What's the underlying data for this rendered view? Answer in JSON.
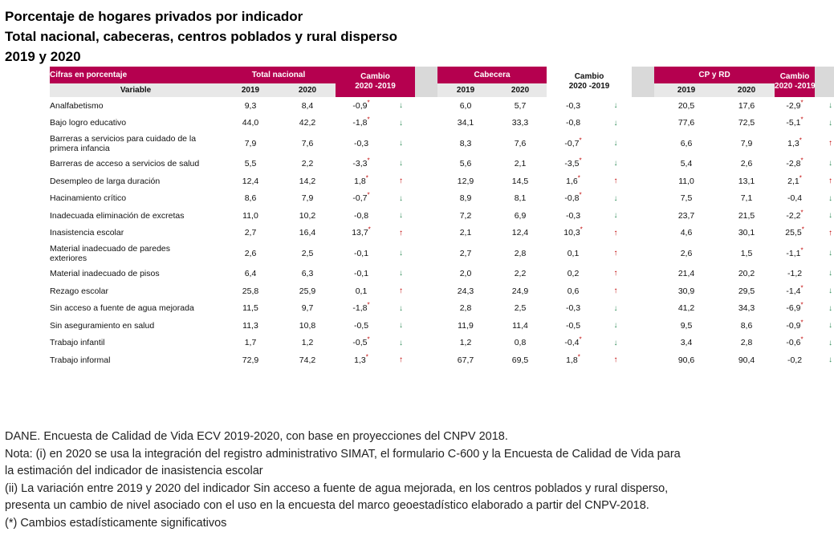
{
  "titles": {
    "line1": "Porcentaje de hogares privados por indicador",
    "line2": "Total nacional, cabeceras, centros poblados y rural disperso",
    "line3": "2019 y 2020"
  },
  "header": {
    "cifras": "Cifras en porcentaje",
    "variable": "Variable",
    "total_nacional": "Total nacional",
    "cabecera": "Cabecera",
    "cp_rd": "CP y RD",
    "cambio": "Cambio",
    "cambio_years": "2020 -2019",
    "y2019": "2019",
    "y2020": "2020"
  },
  "arrows": {
    "up": "↑",
    "down": "↓",
    "star": "*"
  },
  "colors": {
    "accent": "#b5004f",
    "up": "#c00000",
    "down": "#2e8b57",
    "gray": "#d9d9d9"
  },
  "rows": [
    {
      "name": "Analfabetismo",
      "tn19": "9,3",
      "tn20": "8,4",
      "tnc": "-0,9",
      "tns": true,
      "tna": "down",
      "c19": "6,0",
      "c20": "5,7",
      "cc": "-0,3",
      "cs": false,
      "ca": "down",
      "r19": "20,5",
      "r20": "17,6",
      "rc": "-2,9",
      "rs": true,
      "ra": "down"
    },
    {
      "name": "Bajo logro educativo",
      "tn19": "44,0",
      "tn20": "42,2",
      "tnc": "-1,8",
      "tns": true,
      "tna": "down",
      "c19": "34,1",
      "c20": "33,3",
      "cc": "-0,8",
      "cs": false,
      "ca": "down",
      "r19": "77,6",
      "r20": "72,5",
      "rc": "-5,1",
      "rs": true,
      "ra": "down"
    },
    {
      "name": "Barreras a servicios para cuidado de la",
      "name2": "primera infancia",
      "tn19": "7,9",
      "tn20": "7,6",
      "tnc": "-0,3",
      "tns": false,
      "tna": "down",
      "c19": "8,3",
      "c20": "7,6",
      "cc": "-0,7",
      "cs": true,
      "ca": "down",
      "r19": "6,6",
      "r20": "7,9",
      "rc": "1,3",
      "rs": true,
      "ra": "up"
    },
    {
      "name": "Barreras de acceso a servicios de salud",
      "tn19": "5,5",
      "tn20": "2,2",
      "tnc": "-3,3",
      "tns": true,
      "tna": "down",
      "c19": "5,6",
      "c20": "2,1",
      "cc": "-3,5",
      "cs": true,
      "ca": "down",
      "r19": "5,4",
      "r20": "2,6",
      "rc": "-2,8",
      "rs": true,
      "ra": "down"
    },
    {
      "name": "Desempleo de larga duración",
      "tn19": "12,4",
      "tn20": "14,2",
      "tnc": "1,8",
      "tns": true,
      "tna": "up",
      "c19": "12,9",
      "c20": "14,5",
      "cc": "1,6",
      "cs": true,
      "ca": "up",
      "r19": "11,0",
      "r20": "13,1",
      "rc": "2,1",
      "rs": true,
      "ra": "up"
    },
    {
      "name": "Hacinamiento crítico",
      "tn19": "8,6",
      "tn20": "7,9",
      "tnc": "-0,7",
      "tns": true,
      "tna": "down",
      "c19": "8,9",
      "c20": "8,1",
      "cc": "-0,8",
      "cs": true,
      "ca": "down",
      "r19": "7,5",
      "r20": "7,1",
      "rc": "-0,4",
      "rs": false,
      "ra": "down"
    },
    {
      "name": "Inadecuada eliminación de excretas",
      "tn19": "11,0",
      "tn20": "10,2",
      "tnc": "-0,8",
      "tns": false,
      "tna": "down",
      "c19": "7,2",
      "c20": "6,9",
      "cc": "-0,3",
      "cs": false,
      "ca": "down",
      "r19": "23,7",
      "r20": "21,5",
      "rc": "-2,2",
      "rs": true,
      "ra": "down"
    },
    {
      "name": "Inasistencia escolar",
      "tn19": "2,7",
      "tn20": "16,4",
      "tnc": "13,7",
      "tns": true,
      "tna": "up",
      "c19": "2,1",
      "c20": "12,4",
      "cc": "10,3",
      "cs": true,
      "ca": "up",
      "r19": "4,6",
      "r20": "30,1",
      "rc": "25,5",
      "rs": true,
      "ra": "up"
    },
    {
      "name": "Material inadecuado de paredes",
      "name2": "exteriores",
      "tn19": "2,6",
      "tn20": "2,5",
      "tnc": "-0,1",
      "tns": false,
      "tna": "down",
      "c19": "2,7",
      "c20": "2,8",
      "cc": "0,1",
      "cs": false,
      "ca": "up",
      "r19": "2,6",
      "r20": "1,5",
      "rc": "-1,1",
      "rs": true,
      "ra": "down"
    },
    {
      "name": "Material inadecuado de pisos",
      "tn19": "6,4",
      "tn20": "6,3",
      "tnc": "-0,1",
      "tns": false,
      "tna": "down",
      "c19": "2,0",
      "c20": "2,2",
      "cc": "0,2",
      "cs": false,
      "ca": "up",
      "r19": "21,4",
      "r20": "20,2",
      "rc": "-1,2",
      "rs": false,
      "ra": "down"
    },
    {
      "name": "Rezago escolar",
      "tn19": "25,8",
      "tn20": "25,9",
      "tnc": "0,1",
      "tns": false,
      "tna": "up",
      "c19": "24,3",
      "c20": "24,9",
      "cc": "0,6",
      "cs": false,
      "ca": "up",
      "r19": "30,9",
      "r20": "29,5",
      "rc": "-1,4",
      "rs": true,
      "ra": "down"
    },
    {
      "name": "Sin acceso a fuente de agua mejorada",
      "tn19": "11,5",
      "tn20": "9,7",
      "tnc": "-1,8",
      "tns": true,
      "tna": "down",
      "c19": "2,8",
      "c20": "2,5",
      "cc": "-0,3",
      "cs": false,
      "ca": "down",
      "r19": "41,2",
      "r20": "34,3",
      "rc": "-6,9",
      "rs": true,
      "ra": "down"
    },
    {
      "name": "Sin aseguramiento en salud",
      "tn19": "11,3",
      "tn20": "10,8",
      "tnc": "-0,5",
      "tns": false,
      "tna": "down",
      "c19": "11,9",
      "c20": "11,4",
      "cc": "-0,5",
      "cs": false,
      "ca": "down",
      "r19": "9,5",
      "r20": "8,6",
      "rc": "-0,9",
      "rs": true,
      "ra": "down"
    },
    {
      "name": "Trabajo infantil",
      "tn19": "1,7",
      "tn20": "1,2",
      "tnc": "-0,5",
      "tns": true,
      "tna": "down",
      "c19": "1,2",
      "c20": "0,8",
      "cc": "-0,4",
      "cs": true,
      "ca": "down",
      "r19": "3,4",
      "r20": "2,8",
      "rc": "-0,6",
      "rs": true,
      "ra": "down"
    },
    {
      "name": "Trabajo informal",
      "tn19": "72,9",
      "tn20": "74,2",
      "tnc": "1,3",
      "tns": true,
      "tna": "up",
      "c19": "67,7",
      "c20": "69,5",
      "cc": "1,8",
      "cs": true,
      "ca": "up",
      "r19": "90,6",
      "r20": "90,4",
      "rc": "-0,2",
      "rs": false,
      "ra": "down"
    }
  ],
  "notes": {
    "line1": "DANE. Encuesta de Calidad de Vida ECV 2019-2020, con base en proyecciones del CNPV 2018.",
    "line2": "Nota: (i) en 2020 se usa la integración del registro administrativo SIMAT, el formulario C-600 y la Encuesta de Calidad de Vida para",
    "line3": "la estimación del indicador de inasistencia escolar",
    "line4": "(ii) La variación entre 2019 y 2020 del indicador Sin acceso a fuente de agua mejorada, en los centros poblados y rural disperso,",
    "line5": "presenta un cambio de nivel asociado con el uso en la encuesta del marco geoestadístico elaborado a partir del CNPV-2018.",
    "line6": "(*) Cambios estadísticamente significativos"
  }
}
